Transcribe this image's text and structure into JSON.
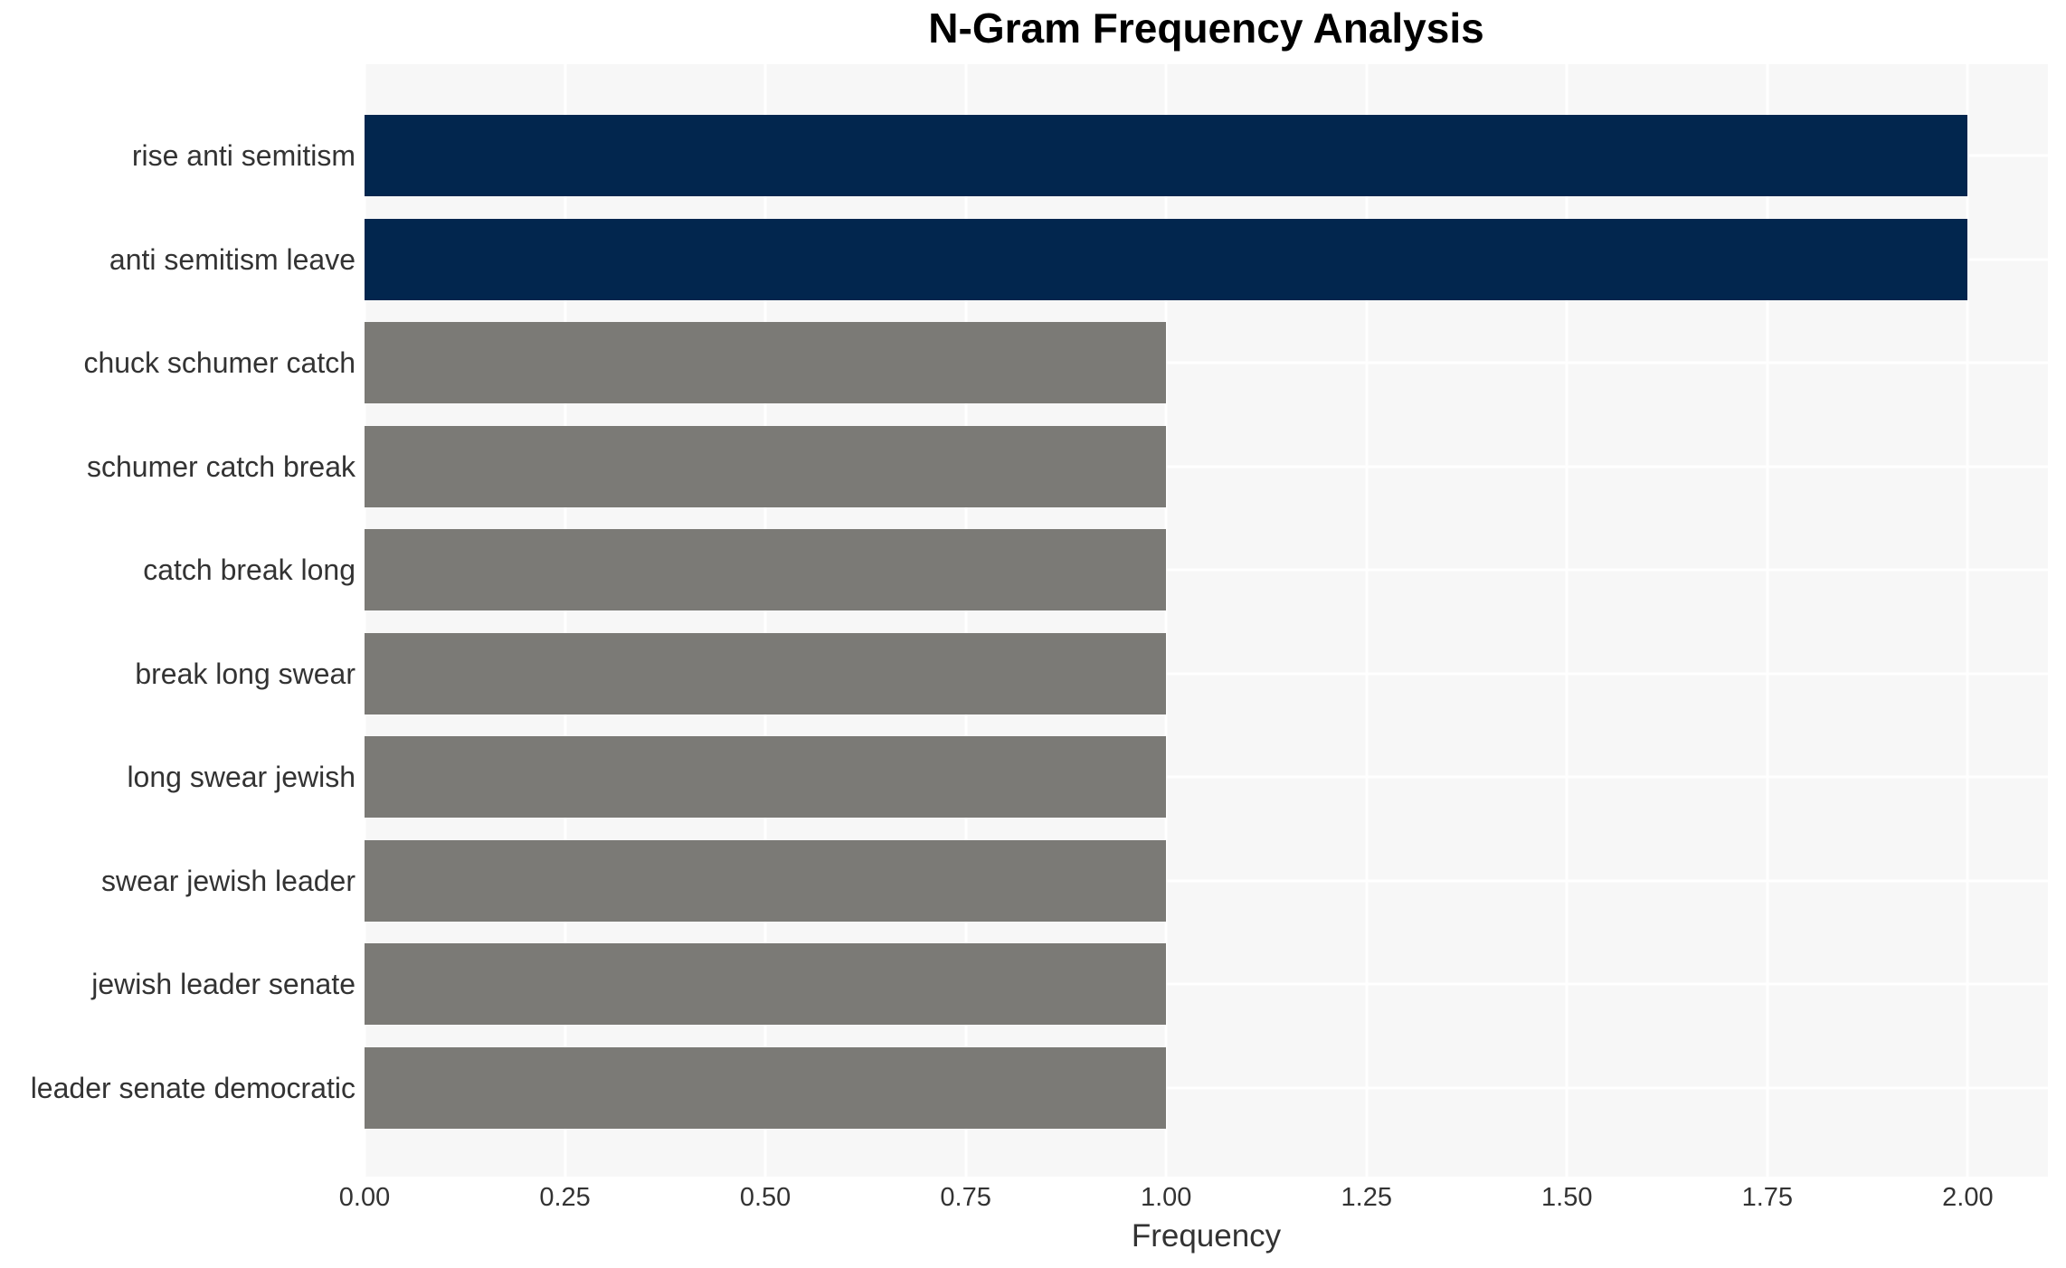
{
  "chart_data": {
    "type": "bar",
    "orientation": "horizontal",
    "title": "N-Gram Frequency Analysis",
    "xlabel": "Frequency",
    "ylabel": "",
    "categories": [
      "rise anti semitism",
      "anti semitism leave",
      "chuck schumer catch",
      "schumer catch break",
      "catch break long",
      "break long swear",
      "long swear jewish",
      "swear jewish leader",
      "jewish leader senate",
      "leader senate democratic"
    ],
    "values": [
      2.0,
      2.0,
      1.0,
      1.0,
      1.0,
      1.0,
      1.0,
      1.0,
      1.0,
      1.0
    ],
    "bar_colors": [
      "#02264e",
      "#02264e",
      "#7b7a76",
      "#7b7a76",
      "#7b7a76",
      "#7b7a76",
      "#7b7a76",
      "#7b7a76",
      "#7b7a76",
      "#7b7a76"
    ],
    "xlim": [
      0,
      2.1
    ],
    "xtick_values": [
      0,
      0.25,
      0.5,
      0.75,
      1.0,
      1.25,
      1.5,
      1.75,
      2.0
    ],
    "xtick_labels": [
      "0.00",
      "0.25",
      "0.50",
      "0.75",
      "1.00",
      "1.25",
      "1.50",
      "1.75",
      "2.00"
    ],
    "grid": true,
    "legend": false
  },
  "colors": {
    "bar_highlight": "#02264e",
    "bar_default": "#7b7a76",
    "plot_background": "#f7f7f7",
    "gridline": "#ffffff",
    "tick_text": "#333333",
    "title_text": "#000000"
  }
}
